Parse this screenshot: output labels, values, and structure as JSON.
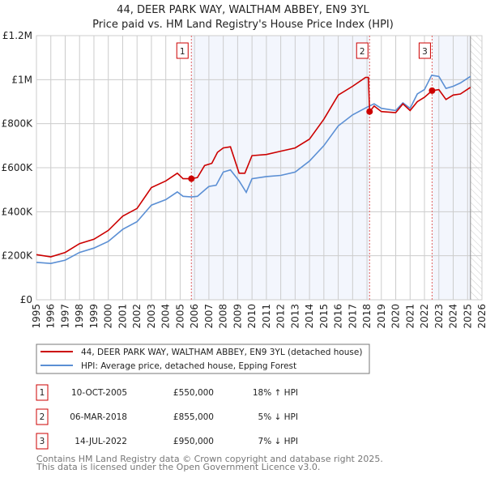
{
  "chart_data": {
    "type": "line",
    "title": "44, DEER PARK WAY, WALTHAM ABBEY, EN9 3YL",
    "subtitle": "Price paid vs. HM Land Registry's House Price Index (HPI)",
    "xlabel": "",
    "ylabel": "",
    "xlim": [
      1995,
      2026
    ],
    "ylim": [
      0,
      1200000
    ],
    "grid": true,
    "y_ticks": [
      {
        "v": 0,
        "label": "£0"
      },
      {
        "v": 200000,
        "label": "£200K"
      },
      {
        "v": 400000,
        "label": "£400K"
      },
      {
        "v": 600000,
        "label": "£600K"
      },
      {
        "v": 800000,
        "label": "£800K"
      },
      {
        "v": 1000000,
        "label": "£1M"
      },
      {
        "v": 1200000,
        "label": "£1.2M"
      }
    ],
    "x_ticks": [
      "1995",
      "1996",
      "1997",
      "1998",
      "1999",
      "2000",
      "2001",
      "2002",
      "2003",
      "2004",
      "2005",
      "2006",
      "2007",
      "2008",
      "2009",
      "2010",
      "2011",
      "2012",
      "2013",
      "2014",
      "2015",
      "2016",
      "2017",
      "2018",
      "2019",
      "2020",
      "2021",
      "2022",
      "2023",
      "2024",
      "2025",
      "2026"
    ],
    "series": [
      {
        "name": "44, DEER PARK WAY, WALTHAM ABBEY, EN9 3YL (detached house)",
        "color": "#cc0000",
        "x": [
          1995,
          1996,
          1997,
          1998,
          1999,
          2000,
          2001,
          2002,
          2003,
          2004,
          2004.8,
          2005.2,
          2005.78,
          2006.2,
          2006.7,
          2007.2,
          2007.6,
          2008,
          2008.5,
          2009.1,
          2009.5,
          2010,
          2011,
          2012,
          2013,
          2014,
          2015,
          2016,
          2017,
          2017.9,
          2018.1,
          2018.18,
          2018.5,
          2019,
          2020,
          2020.5,
          2021,
          2021.5,
          2022,
          2022.53,
          2023,
          2023.5,
          2024,
          2024.5,
          2025.2
        ],
        "y": [
          205000,
          195000,
          215000,
          255000,
          275000,
          315000,
          380000,
          415000,
          510000,
          540000,
          575000,
          550000,
          550000,
          555000,
          610000,
          620000,
          670000,
          690000,
          695000,
          575000,
          575000,
          655000,
          660000,
          675000,
          690000,
          730000,
          820000,
          930000,
          970000,
          1010000,
          1010000,
          855000,
          880000,
          855000,
          850000,
          890000,
          860000,
          900000,
          920000,
          950000,
          955000,
          910000,
          930000,
          935000,
          965000
        ]
      },
      {
        "name": "HPI: Average price, detached house, Epping Forest",
        "color": "#5b8fd4",
        "x": [
          1995,
          1996,
          1997,
          1998,
          1999,
          2000,
          2001,
          2002,
          2003,
          2004,
          2004.8,
          2005.2,
          2005.78,
          2006.2,
          2007,
          2007.5,
          2008,
          2008.5,
          2009.1,
          2009.6,
          2010,
          2011,
          2012,
          2013,
          2014,
          2015,
          2016,
          2017,
          2018,
          2018.5,
          2019,
          2020,
          2020.5,
          2021,
          2021.5,
          2022,
          2022.5,
          2023,
          2023.5,
          2024,
          2024.5,
          2025.2
        ],
        "y": [
          170000,
          165000,
          180000,
          215000,
          235000,
          265000,
          320000,
          355000,
          430000,
          455000,
          490000,
          470000,
          467000,
          470000,
          515000,
          520000,
          580000,
          590000,
          540000,
          488000,
          550000,
          560000,
          565000,
          580000,
          630000,
          700000,
          790000,
          840000,
          875000,
          890000,
          870000,
          860000,
          895000,
          870000,
          935000,
          955000,
          1020000,
          1015000,
          960000,
          970000,
          985000,
          1015000
        ]
      }
    ],
    "sales": [
      {
        "id": "1",
        "x": 2005.78,
        "date": "10-OCT-2005",
        "price": "£550,000",
        "value": 550000,
        "hpi": "18% ↑ HPI"
      },
      {
        "id": "2",
        "x": 2018.18,
        "date": "06-MAR-2018",
        "price": "£855,000",
        "value": 855000,
        "hpi": "5% ↓ HPI"
      },
      {
        "id": "3",
        "x": 2022.53,
        "date": "14-JUL-2022",
        "price": "£950,000",
        "value": 950000,
        "hpi": "7% ↓ HPI"
      }
    ],
    "shaded_ranges": [
      [
        2005.78,
        2018.18
      ],
      [
        2022.53,
        2025.2
      ]
    ],
    "forecast_start": 2025.2,
    "legend_position": "below"
  },
  "footer": {
    "line1": "Contains HM Land Registry data © Crown copyright and database right 2025.",
    "line2": "This data is licensed under the Open Government Licence v3.0."
  }
}
